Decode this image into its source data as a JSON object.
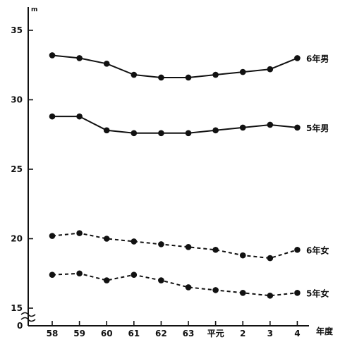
{
  "chart_data": {
    "type": "line",
    "ylabel": "m",
    "xlabel": "年度",
    "ylim": [
      15,
      37
    ],
    "yticks": [
      15,
      20,
      25,
      30,
      35
    ],
    "categories": [
      "58",
      "59",
      "60",
      "61",
      "62",
      "63",
      "平元",
      "2",
      "3",
      "4"
    ],
    "series": [
      {
        "name": "6年男",
        "style": "solid",
        "values": [
          33.2,
          33.0,
          32.6,
          31.8,
          31.6,
          31.6,
          31.8,
          32.0,
          32.2,
          33.0
        ]
      },
      {
        "name": "5年男",
        "style": "solid",
        "values": [
          28.8,
          28.8,
          27.8,
          27.6,
          27.6,
          27.6,
          27.8,
          28.0,
          28.2,
          28.0
        ]
      },
      {
        "name": "6年女",
        "style": "dashed",
        "values": [
          20.2,
          20.4,
          20.0,
          19.8,
          19.6,
          19.4,
          19.2,
          18.8,
          18.6,
          19.2
        ]
      },
      {
        "name": "5年女",
        "style": "dashed",
        "values": [
          17.4,
          17.5,
          17.0,
          17.4,
          17.0,
          16.5,
          16.3,
          16.1,
          15.9,
          16.1
        ]
      }
    ],
    "grid": false,
    "legend": "inline-right"
  }
}
